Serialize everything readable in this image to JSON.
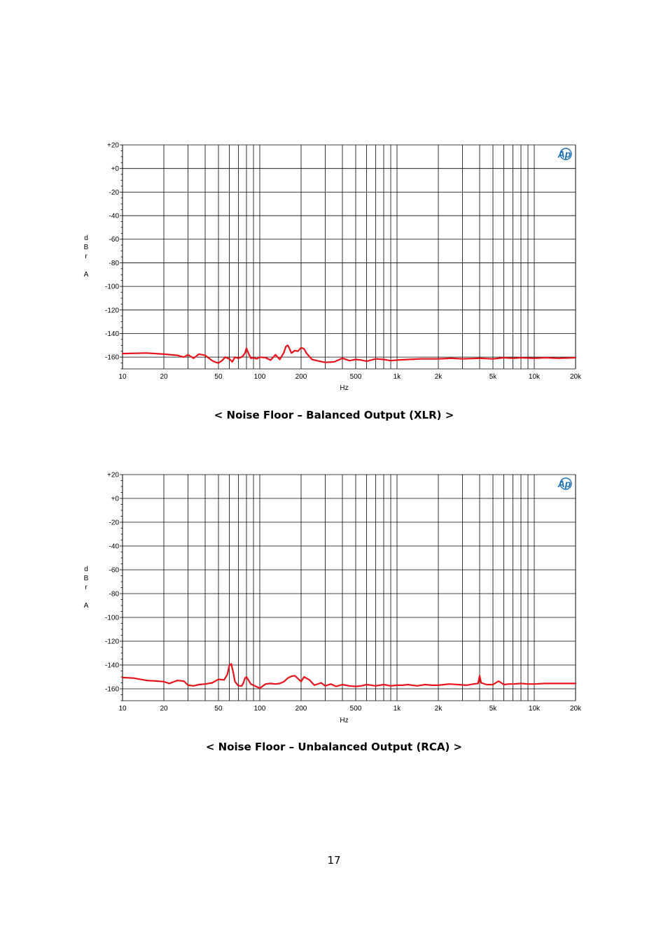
{
  "page": {
    "number": "17"
  },
  "chart_data": [
    {
      "type": "line",
      "title": "",
      "caption": "< Noise Floor – Balanced Output (XLR) >",
      "xlabel": "Hz",
      "ylabel": [
        "d",
        "B",
        "r",
        "",
        "A"
      ],
      "x_scale": "log",
      "xlim": [
        10,
        20000
      ],
      "ylim": [
        -170,
        20
      ],
      "x_ticks": [
        {
          "v": 10,
          "label": "10"
        },
        {
          "v": 20,
          "label": "20"
        },
        {
          "v": 50,
          "label": "50"
        },
        {
          "v": 100,
          "label": "100"
        },
        {
          "v": 200,
          "label": "200"
        },
        {
          "v": 500,
          "label": "500"
        },
        {
          "v": 1000,
          "label": "1k"
        },
        {
          "v": 2000,
          "label": "2k"
        },
        {
          "v": 5000,
          "label": "5k"
        },
        {
          "v": 10000,
          "label": "10k"
        },
        {
          "v": 20000,
          "label": "20k"
        }
      ],
      "y_ticks": [
        {
          "v": 20,
          "label": "+20"
        },
        {
          "v": 0,
          "label": "+0"
        },
        {
          "v": -20,
          "label": "-20"
        },
        {
          "v": -40,
          "label": "-40"
        },
        {
          "v": -60,
          "label": "-60"
        },
        {
          "v": -80,
          "label": "-80"
        },
        {
          "v": -100,
          "label": "-100"
        },
        {
          "v": -120,
          "label": "-120"
        },
        {
          "v": -140,
          "label": "-140"
        },
        {
          "v": -160,
          "label": "-160"
        }
      ],
      "grid": true,
      "logo": "Ap",
      "colors": {
        "line": "#e8131a",
        "grid": "#000000",
        "logo": "#1a6fb5"
      },
      "series": [
        {
          "x": [
            10,
            15,
            20,
            25,
            28,
            30,
            33,
            36,
            40,
            45,
            48,
            50,
            53,
            56,
            60,
            63,
            66,
            70,
            75,
            78,
            80,
            83,
            86,
            90,
            95,
            100,
            110,
            120,
            130,
            140,
            150,
            155,
            160,
            165,
            170,
            180,
            190,
            200,
            210,
            220,
            240,
            260,
            300,
            350,
            400,
            450,
            500,
            550,
            600,
            700,
            800,
            900,
            1000,
            1200,
            1500,
            2000,
            2500,
            3000,
            4000,
            5000,
            6000,
            7000,
            8000,
            10000,
            12000,
            15000,
            20000
          ],
          "y": [
            -157,
            -156.5,
            -157.5,
            -158.5,
            -160,
            -158,
            -161,
            -157.5,
            -158.5,
            -163,
            -164.5,
            -165,
            -163,
            -160,
            -161.5,
            -164,
            -160,
            -161,
            -159.5,
            -156.5,
            -152.5,
            -157,
            -161,
            -160.5,
            -161.5,
            -160,
            -160.5,
            -162.5,
            -158,
            -162,
            -156,
            -151,
            -150,
            -153,
            -156.5,
            -154.5,
            -155,
            -152,
            -153,
            -157,
            -162,
            -163,
            -164.5,
            -164,
            -161,
            -163,
            -162,
            -162.5,
            -163.5,
            -161.5,
            -162,
            -163,
            -162.5,
            -162,
            -161.5,
            -161.5,
            -161,
            -161.5,
            -161,
            -161.5,
            -160.5,
            -161,
            -160.5,
            -161,
            -160.5,
            -161,
            -160.5
          ]
        }
      ]
    },
    {
      "type": "line",
      "title": "",
      "caption": "< Noise Floor – Unbalanced Output (RCA) >",
      "xlabel": "Hz",
      "ylabel": [
        "d",
        "B",
        "r",
        "",
        "A"
      ],
      "x_scale": "log",
      "xlim": [
        10,
        20000
      ],
      "ylim": [
        -170,
        20
      ],
      "x_ticks": [
        {
          "v": 10,
          "label": "10"
        },
        {
          "v": 20,
          "label": "20"
        },
        {
          "v": 50,
          "label": "50"
        },
        {
          "v": 100,
          "label": "100"
        },
        {
          "v": 200,
          "label": "200"
        },
        {
          "v": 500,
          "label": "500"
        },
        {
          "v": 1000,
          "label": "1k"
        },
        {
          "v": 2000,
          "label": "2k"
        },
        {
          "v": 5000,
          "label": "5k"
        },
        {
          "v": 10000,
          "label": "10k"
        },
        {
          "v": 20000,
          "label": "20k"
        }
      ],
      "y_ticks": [
        {
          "v": 20,
          "label": "+20"
        },
        {
          "v": 0,
          "label": "+0"
        },
        {
          "v": -20,
          "label": "-20"
        },
        {
          "v": -40,
          "label": "-40"
        },
        {
          "v": -60,
          "label": "-60"
        },
        {
          "v": -80,
          "label": "-80"
        },
        {
          "v": -100,
          "label": "-100"
        },
        {
          "v": -120,
          "label": "-120"
        },
        {
          "v": -140,
          "label": "-140"
        },
        {
          "v": -160,
          "label": "-160"
        }
      ],
      "grid": true,
      "logo": "Ap",
      "colors": {
        "line": "#e8131a",
        "grid": "#000000",
        "logo": "#1a6fb5"
      },
      "series": [
        {
          "x": [
            10,
            12,
            15,
            18,
            20,
            22,
            25,
            28,
            30,
            33,
            36,
            40,
            45,
            50,
            55,
            58,
            60,
            62,
            64,
            66,
            70,
            74,
            76,
            78,
            80,
            83,
            86,
            90,
            100,
            110,
            120,
            130,
            140,
            150,
            160,
            170,
            180,
            190,
            200,
            210,
            230,
            250,
            280,
            300,
            330,
            360,
            400,
            450,
            500,
            550,
            600,
            700,
            800,
            900,
            1000,
            1100,
            1200,
            1400,
            1600,
            1800,
            2000,
            2400,
            2800,
            3200,
            3600,
            3900,
            4000,
            4100,
            4500,
            5000,
            5500,
            6000,
            6500,
            7000,
            8000,
            9000,
            10000,
            12000,
            15000,
            20000
          ],
          "y": [
            -150.5,
            -151,
            -153,
            -153.5,
            -154,
            -155.5,
            -153,
            -153.5,
            -157,
            -157.5,
            -156.5,
            -156,
            -155,
            -152,
            -152.5,
            -148,
            -140.5,
            -139,
            -146,
            -154,
            -157.5,
            -157.5,
            -155,
            -151,
            -150,
            -153,
            -156,
            -157,
            -159.5,
            -156,
            -155.5,
            -156,
            -155.5,
            -154,
            -151,
            -149.5,
            -149,
            -151.5,
            -154,
            -150,
            -152.5,
            -157,
            -155,
            -157.5,
            -156,
            -158,
            -156.5,
            -157.5,
            -158,
            -157.5,
            -156.5,
            -157.5,
            -156.5,
            -157.5,
            -157,
            -157,
            -156.5,
            -157.5,
            -156.5,
            -157,
            -157,
            -156,
            -156.5,
            -157,
            -156,
            -155.5,
            -149,
            -155,
            -156.5,
            -156.5,
            -153.5,
            -156.5,
            -156,
            -156,
            -155.5,
            -156,
            -156,
            -155.5,
            -155.5,
            -155.5
          ]
        }
      ]
    }
  ]
}
